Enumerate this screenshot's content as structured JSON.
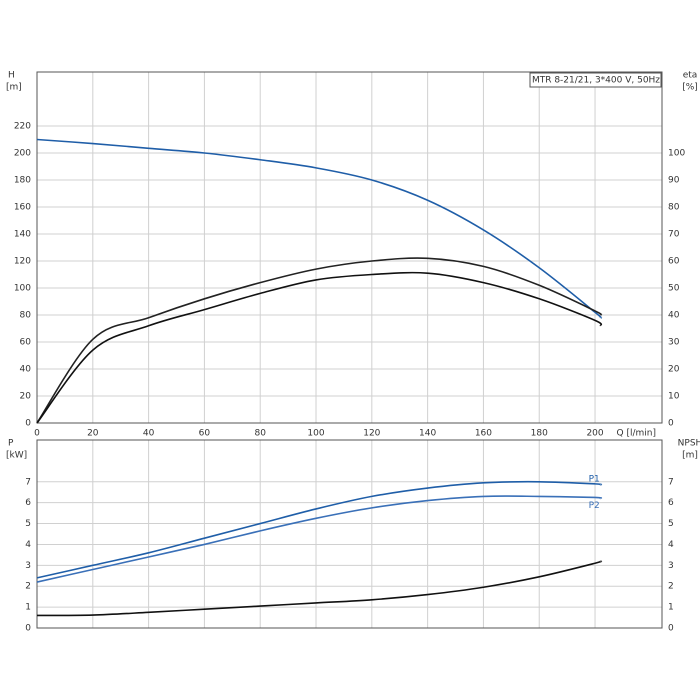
{
  "chart_data": [
    {
      "type": "line",
      "title": "MTR 8-21/21, 3*400 V, 50Hz",
      "ylabel": "H",
      "yunit": "[m]",
      "y2label": "eta",
      "y2unit": "[%]",
      "xlabel": "Q [l/min]",
      "x": [
        0,
        20,
        40,
        60,
        80,
        100,
        120,
        140,
        160,
        180,
        200,
        202
      ],
      "xlim": [
        0,
        224
      ],
      "xticks": [
        0,
        20,
        40,
        60,
        80,
        100,
        120,
        140,
        160,
        180,
        200
      ],
      "ylim": [
        0,
        260
      ],
      "yticks": [
        0,
        20,
        40,
        60,
        80,
        100,
        120,
        140,
        160,
        180,
        200,
        220
      ],
      "y2lim": [
        0,
        130
      ],
      "y2ticks": [
        0,
        10,
        20,
        30,
        40,
        50,
        60,
        70,
        80,
        90,
        100
      ],
      "grid": true,
      "series": [
        {
          "color": "#1f5ea8",
          "values": [
            210,
            207,
            203.5,
            200,
            195,
            189,
            180,
            165,
            143,
            115,
            82,
            78
          ]
        },
        {
          "color": "#222222",
          "axis": "y2",
          "values": [
            0,
            31,
            39,
            46,
            52,
            57,
            60,
            61,
            58,
            51,
            41.5,
            40
          ]
        },
        {
          "color": "#111111",
          "axis": "y2",
          "values": [
            0,
            27,
            36,
            42,
            48,
            53,
            55,
            55.5,
            52,
            46,
            38,
            36
          ]
        }
      ]
    },
    {
      "type": "line",
      "ylabel": "P",
      "yunit": "[kW]",
      "y2label": "NPSH",
      "y2unit": "[m]",
      "x": [
        0,
        20,
        40,
        60,
        80,
        100,
        120,
        140,
        160,
        180,
        200,
        202
      ],
      "xlim": [
        0,
        224
      ],
      "xticks": [
        0,
        20,
        40,
        60,
        80,
        100,
        120,
        140,
        160,
        180,
        200
      ],
      "ylim": [
        0,
        9
      ],
      "yticks": [
        0,
        1,
        2,
        3,
        4,
        5,
        6,
        7
      ],
      "y2lim": [
        0,
        9
      ],
      "y2ticks": [
        0,
        1,
        2,
        3,
        4,
        5,
        6,
        7
      ],
      "grid": true,
      "series": [
        {
          "name": "P1",
          "color": "#1f5ea8",
          "values": [
            2.4,
            3.0,
            3.6,
            4.3,
            5.0,
            5.7,
            6.3,
            6.7,
            6.95,
            7.0,
            6.9,
            6.85
          ]
        },
        {
          "name": "P2",
          "color": "#3a70b8",
          "values": [
            2.2,
            2.8,
            3.4,
            4.0,
            4.65,
            5.25,
            5.75,
            6.1,
            6.3,
            6.3,
            6.25,
            6.2
          ]
        },
        {
          "color": "#111111",
          "axis": "y2",
          "values": [
            0.6,
            0.62,
            0.75,
            0.9,
            1.05,
            1.2,
            1.35,
            1.6,
            1.95,
            2.45,
            3.1,
            3.2
          ]
        }
      ]
    }
  ]
}
